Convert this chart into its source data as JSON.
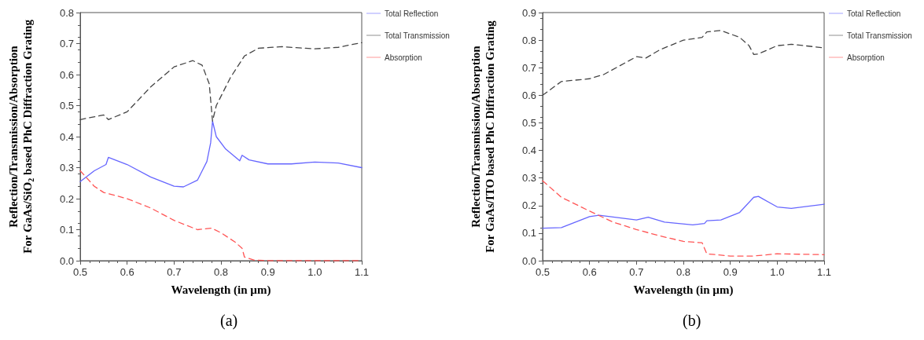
{
  "chart_data": [
    {
      "type": "line",
      "xlabel": "Wavelength (in µm)",
      "ylabel": "Reflection/Transmission/Absorption\nFor GaAs/SiO$_{2}$ based PhC Diffraction Grating",
      "annotations": [
        "(a)"
      ],
      "legend": "right",
      "grid": false,
      "marker": "none",
      "xlim": [
        0.5,
        1.1
      ],
      "xticks": [
        0.5,
        0.6,
        0.7,
        0.8,
        0.9,
        {
          "value": 1.0,
          "label": "1.0"
        },
        1.1
      ],
      "ylim": [
        0,
        0.8
      ],
      "yticks": [
        {
          "value": 0,
          "label": "0.0"
        },
        0.1,
        0.2,
        0.3,
        0.4,
        0.5,
        0.6,
        0.7,
        0.8
      ],
      "series": [
        {
          "name": "Total Reflection",
          "color": "#6666ff",
          "line_style": "solid",
          "x": [
            0.5,
            0.53,
            0.555,
            0.56,
            0.6,
            0.65,
            0.7,
            0.72,
            0.75,
            0.77,
            0.778,
            0.782,
            0.79,
            0.81,
            0.84,
            0.845,
            0.86,
            0.9,
            0.95,
            1.0,
            1.05,
            1.1
          ],
          "values": [
            0.255,
            0.29,
            0.31,
            0.333,
            0.31,
            0.27,
            0.24,
            0.238,
            0.26,
            0.32,
            0.38,
            0.45,
            0.4,
            0.36,
            0.322,
            0.34,
            0.325,
            0.312,
            0.312,
            0.318,
            0.315,
            0.3
          ]
        },
        {
          "name": "Total Transmission",
          "color": "#444444",
          "line_style": "dashed",
          "x": [
            0.5,
            0.55,
            0.56,
            0.6,
            0.65,
            0.7,
            0.74,
            0.76,
            0.775,
            0.782,
            0.79,
            0.82,
            0.85,
            0.88,
            0.93,
            1.0,
            1.05,
            1.1
          ],
          "values": [
            0.455,
            0.47,
            0.455,
            0.48,
            0.56,
            0.625,
            0.645,
            0.63,
            0.57,
            0.45,
            0.5,
            0.59,
            0.66,
            0.685,
            0.69,
            0.683,
            0.688,
            0.703
          ]
        },
        {
          "name": "Absorption",
          "color": "#ff5555",
          "line_style": "dashed",
          "x": [
            0.5,
            0.53,
            0.55,
            0.6,
            0.65,
            0.7,
            0.75,
            0.78,
            0.8,
            0.83,
            0.845,
            0.85,
            0.87,
            0.9,
            1.1
          ],
          "values": [
            0.29,
            0.24,
            0.22,
            0.2,
            0.17,
            0.13,
            0.1,
            0.105,
            0.09,
            0.06,
            0.04,
            0.012,
            0.002,
            0,
            0
          ]
        }
      ]
    },
    {
      "type": "line",
      "xlabel": "Wavelength (in µm)",
      "ylabel": "Reflection/Transmission/Absorption\nFor GaAs/ITO based PhC Diffraction Grating",
      "annotations": [
        "(b)"
      ],
      "legend": "right",
      "grid": false,
      "marker": "none",
      "xlim": [
        0.5,
        1.1
      ],
      "xticks": [
        0.5,
        0.6,
        0.7,
        0.8,
        0.9,
        {
          "value": 1.0,
          "label": "1.0"
        },
        1.1
      ],
      "ylim": [
        0,
        0.9
      ],
      "yticks": [
        {
          "value": 0,
          "label": "0.0"
        },
        0.1,
        0.2,
        0.3,
        0.4,
        0.5,
        0.6,
        0.7,
        0.8,
        0.9
      ],
      "series": [
        {
          "name": "Total Reflection",
          "color": "#6666ff",
          "line_style": "solid",
          "x": [
            0.5,
            0.54,
            0.6,
            0.62,
            0.7,
            0.725,
            0.76,
            0.82,
            0.845,
            0.85,
            0.88,
            0.92,
            0.95,
            0.96,
            1.0,
            1.03,
            1.1
          ],
          "values": [
            0.118,
            0.12,
            0.16,
            0.165,
            0.148,
            0.158,
            0.14,
            0.13,
            0.135,
            0.145,
            0.148,
            0.175,
            0.23,
            0.233,
            0.195,
            0.19,
            0.205
          ]
        },
        {
          "name": "Total Transmission",
          "color": "#444444",
          "line_style": "dashed",
          "x": [
            0.5,
            0.54,
            0.6,
            0.63,
            0.7,
            0.72,
            0.75,
            0.8,
            0.84,
            0.85,
            0.88,
            0.92,
            0.94,
            0.95,
            0.96,
            1.0,
            1.03,
            1.1
          ],
          "values": [
            0.6,
            0.65,
            0.66,
            0.675,
            0.74,
            0.735,
            0.765,
            0.8,
            0.81,
            0.83,
            0.835,
            0.81,
            0.78,
            0.748,
            0.75,
            0.78,
            0.785,
            0.772
          ]
        },
        {
          "name": "Absorption",
          "color": "#ff5555",
          "line_style": "dashed",
          "x": [
            0.5,
            0.54,
            0.6,
            0.65,
            0.7,
            0.75,
            0.8,
            0.84,
            0.85,
            0.9,
            0.95,
            1.0,
            1.1
          ],
          "values": [
            0.29,
            0.23,
            0.18,
            0.14,
            0.113,
            0.09,
            0.07,
            0.065,
            0.025,
            0.017,
            0.017,
            0.025,
            0.022
          ]
        }
      ]
    }
  ]
}
